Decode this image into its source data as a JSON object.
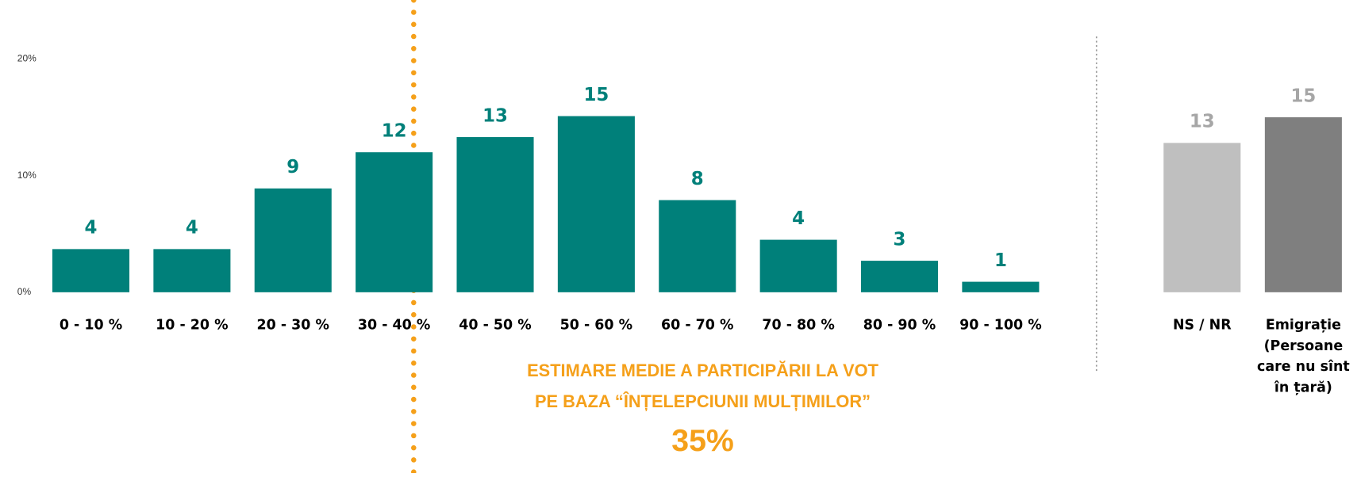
{
  "chart_data": [
    {
      "type": "bar",
      "categories": [
        "0 - 10 %",
        "10 - 20 %",
        "20 - 30 %",
        "30 - 40 %",
        "40 - 50 %",
        "50 - 60 %",
        "60 - 70 %",
        "70 - 80 %",
        "80 - 90 %",
        "90 - 100 %"
      ],
      "values": [
        3.7,
        3.7,
        8.9,
        12.0,
        13.3,
        15.1,
        7.9,
        4.5,
        2.7,
        0.9
      ],
      "value_labels": [
        "4",
        "4",
        "9",
        "12",
        "13",
        "15",
        "8",
        "4",
        "3",
        "1"
      ],
      "color": "#00807a",
      "ylim": [
        0,
        20
      ],
      "yticks": [
        {
          "value": 0,
          "label": "0%"
        },
        {
          "value": 10,
          "label": "10%"
        },
        {
          "value": 20,
          "label": "20%"
        }
      ],
      "annotations": [
        "ESTIMARE MEDIE A PARTICIPĂRII LA VOT",
        "PE BAZA “ÎNȚELEPCIUNII MULȚIMILOR”",
        "35%"
      ],
      "annotation_color": "#f5a01a"
    },
    {
      "type": "bar",
      "categories": [
        "NS / NR",
        "Emigrație (Persoane care nu sînt în țară)"
      ],
      "values": [
        12.8,
        15.0
      ],
      "value_labels": [
        "13",
        "15"
      ],
      "colors": [
        "#bfbfbf",
        "#7f7f7f"
      ],
      "label_color": "#a6a6a6",
      "ylim": [
        0,
        20
      ]
    }
  ]
}
